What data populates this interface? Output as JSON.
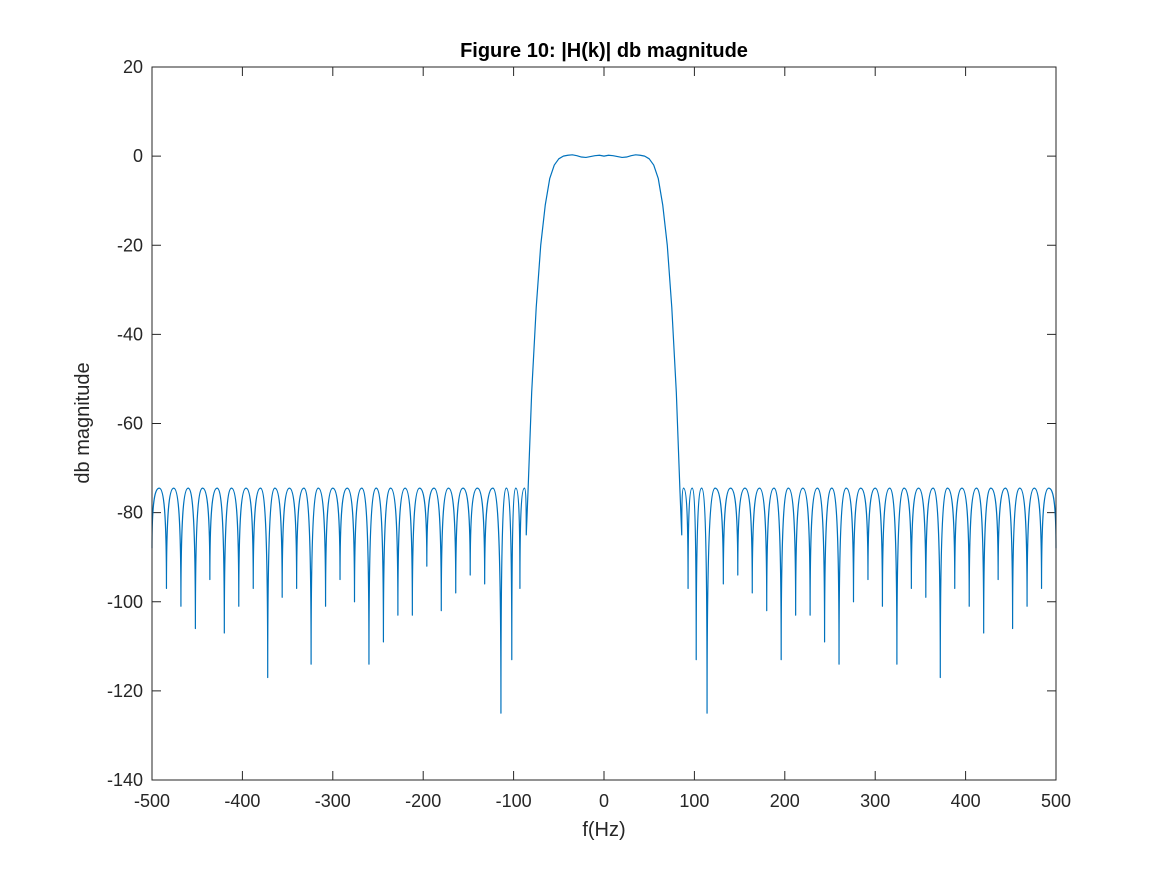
{
  "chart_data": {
    "type": "line",
    "title": "Figure 10: |H(k)| db magnitude",
    "xlabel": "f(Hz)",
    "ylabel": "db magnitude",
    "xlim": [
      -500,
      500
    ],
    "ylim": [
      -140,
      20
    ],
    "xticks": [
      -500,
      -400,
      -300,
      -200,
      -100,
      0,
      100,
      200,
      300,
      400,
      500
    ],
    "yticks": [
      -140,
      -120,
      -100,
      -80,
      -60,
      -40,
      -20,
      0,
      20
    ],
    "grid": false,
    "legend": "none",
    "series": [
      {
        "color": "#0072BD",
        "passband": {
          "x": [
            -86,
            -84,
            -80,
            -75,
            -70,
            -65,
            -60,
            -55,
            -50,
            -45,
            -40,
            -35,
            -30,
            -25,
            -20,
            -15,
            -10,
            -5,
            0,
            5,
            10,
            15,
            20,
            25,
            30,
            35,
            40,
            45,
            50,
            55,
            60,
            65,
            70,
            75,
            80,
            84,
            86
          ],
          "y": [
            -85,
            -75,
            -53,
            -34,
            -20,
            -11,
            -5,
            -2,
            -0.6,
            0,
            0.2,
            0.3,
            0.1,
            -0.2,
            -0.3,
            -0.1,
            0.1,
            0.2,
            0,
            0.2,
            0.1,
            -0.1,
            -0.3,
            -0.2,
            0.1,
            0.3,
            0.2,
            0,
            -0.6,
            -2,
            -5,
            -11,
            -20,
            -34,
            -53,
            -75,
            -85
          ]
        },
        "stopband": {
          "peak_db": -74.5,
          "left_nulls_x": [
            -500,
            -484,
            -468,
            -452,
            -436,
            -420,
            -404,
            -388,
            -372,
            -356,
            -340,
            -324,
            -308,
            -292,
            -276,
            -260,
            -244,
            -228,
            -212,
            -196,
            -180,
            -164,
            -148,
            -132,
            -114,
            -102,
            -93
          ],
          "left_nulls_db": [
            -88,
            -97,
            -101,
            -106,
            -95,
            -107,
            -101,
            -97,
            -117,
            -99,
            -97,
            -114,
            -101,
            -95,
            -100,
            -114,
            -109,
            -103,
            -103,
            -92,
            -102,
            -98,
            -94,
            -96,
            -125,
            -113,
            -97
          ],
          "right_nulls_x": [
            93,
            102,
            114,
            132,
            148,
            164,
            180,
            196,
            212,
            228,
            244,
            260,
            276,
            292,
            308,
            324,
            340,
            356,
            372,
            388,
            404,
            420,
            436,
            452,
            468,
            484,
            500
          ],
          "right_nulls_db": [
            -97,
            -113,
            -125,
            -96,
            -94,
            -98,
            -102,
            -113,
            -103,
            -103,
            -109,
            -114,
            -100,
            -95,
            -101,
            -114,
            -97,
            -99,
            -117,
            -97,
            -101,
            -107,
            -95,
            -106,
            -101,
            -97,
            -88
          ]
        }
      }
    ]
  }
}
